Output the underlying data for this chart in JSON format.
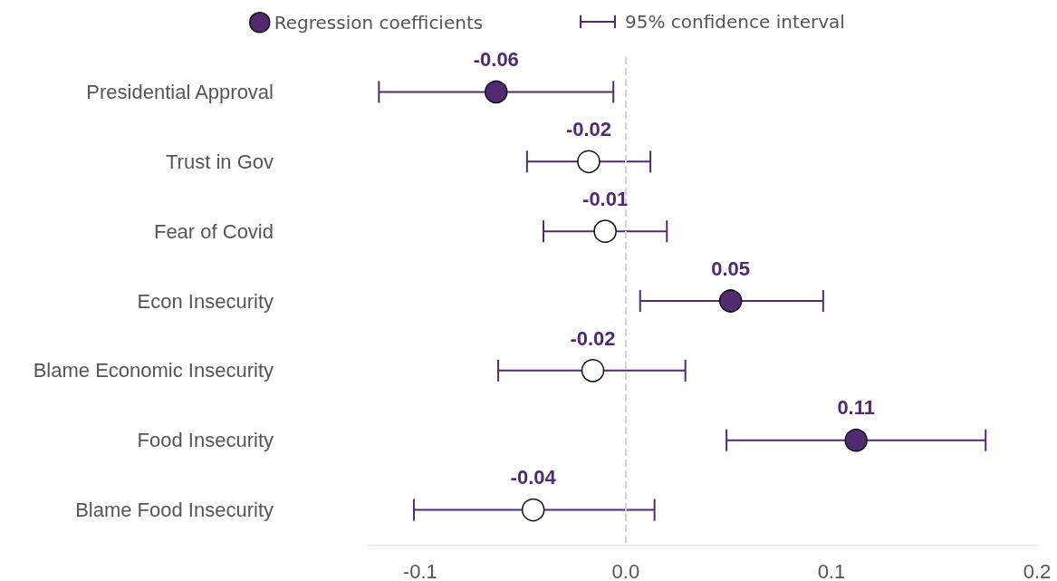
{
  "chart_data": {
    "type": "scatter",
    "orientation": "horizontal",
    "categories": [
      "Presidential Approval",
      "Trust in Gov",
      "Fear of Covid",
      "Econ Insecurity",
      "Blame Economic Insecurity",
      "Food Insecurity",
      "Blame Food Insecurity"
    ],
    "series": [
      {
        "name": "Regression coefficients",
        "color": "#512a72",
        "colors": [
          "#512a72",
          "#ffffff",
          "#ffffff",
          "#512a72",
          "#ffffff",
          "#512a72",
          "#ffffff"
        ],
        "values": [
          -0.063,
          -0.018,
          -0.01,
          0.051,
          -0.016,
          0.112,
          -0.045
        ],
        "errors": [
          [
            -0.12,
            -0.006
          ],
          [
            -0.048,
            0.012
          ],
          [
            -0.04,
            0.02
          ],
          [
            0.007,
            0.096
          ],
          [
            -0.062,
            0.029
          ],
          [
            0.049,
            0.175
          ],
          [
            -0.103,
            0.014
          ]
        ],
        "value_labels": [
          "-0.06",
          "-0.02",
          "-0.01",
          "0.05",
          "-0.02",
          "0.11",
          "-0.04"
        ]
      }
    ],
    "annotations": [
      "95% confidence interval"
    ],
    "xlim": [
      -0.125,
      0.2
    ],
    "xticks": [
      -0.1,
      {
        "value": 0,
        "label": "0.0"
      },
      0.1,
      0.2
    ],
    "ref_lines": [
      {
        "axis": "x",
        "value": 0,
        "color": "#d3d3d3",
        "line_style": "dashed"
      }
    ],
    "grid": false,
    "legend": "top",
    "marker": "circle"
  }
}
